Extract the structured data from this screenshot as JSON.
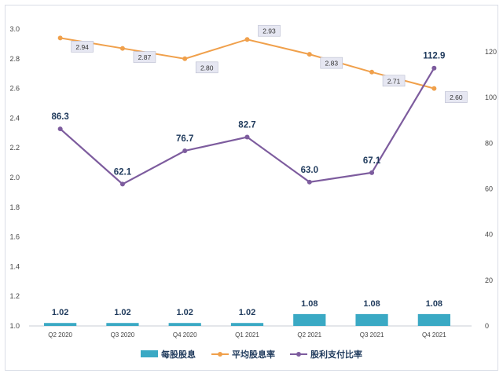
{
  "chart_data": {
    "type": "bar+line",
    "categories": [
      "Q2 2020",
      "Q3 2020",
      "Q4 2020",
      "Q1 2021",
      "Q2 2021",
      "Q3 2021",
      "Q4 2021"
    ],
    "left_axis": {
      "ylim": [
        1.0,
        3.0
      ],
      "ticks": [
        "1.0",
        "1.2",
        "1.4",
        "1.6",
        "1.8",
        "2.0",
        "2.2",
        "2.4",
        "2.6",
        "2.8",
        "3.0"
      ]
    },
    "right_axis": {
      "ylim": [
        0,
        130
      ],
      "ticks": [
        "0",
        "20",
        "40",
        "60",
        "80",
        "100",
        "120"
      ]
    },
    "series": [
      {
        "name": "每股股息",
        "type": "bar",
        "axis": "left",
        "color": "#3aa9c4",
        "values": [
          1.02,
          1.02,
          1.02,
          1.02,
          1.08,
          1.08,
          1.08
        ],
        "labels": [
          "1.02",
          "1.02",
          "1.02",
          "1.02",
          "1.08",
          "1.08",
          "1.08"
        ]
      },
      {
        "name": "平均股息率",
        "type": "line",
        "axis": "left",
        "color": "#f0a04b",
        "values": [
          2.94,
          2.87,
          2.8,
          2.93,
          2.83,
          2.71,
          2.6
        ],
        "labels": [
          "2.94",
          "2.87",
          "2.80",
          "2.93",
          "2.83",
          "2.71",
          "2.60"
        ]
      },
      {
        "name": "股利支付比率",
        "type": "line",
        "axis": "right",
        "color": "#7d5c9e",
        "values": [
          86.3,
          62.1,
          76.7,
          82.7,
          63.0,
          67.1,
          112.9
        ],
        "labels": [
          "86.3",
          "62.1",
          "76.7",
          "82.7",
          "63.0",
          "67.1",
          "112.9"
        ]
      }
    ],
    "legend_position": "bottom",
    "grid": false
  }
}
